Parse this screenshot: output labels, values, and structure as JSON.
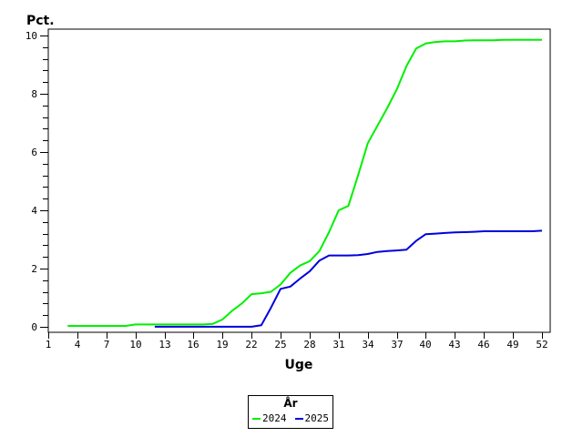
{
  "page": {
    "background": "#ffffff"
  },
  "chart_data": {
    "type": "line",
    "title": "",
    "xlabel": "Uge",
    "ylabel": "Pct.",
    "xlim": [
      1,
      52.85
    ],
    "ylim": [
      -0.19,
      10.22
    ],
    "x_ticks": [
      1,
      4,
      7,
      10,
      13,
      16,
      19,
      22,
      25,
      28,
      31,
      34,
      37,
      40,
      43,
      46,
      49,
      52
    ],
    "y_ticks": [
      0,
      2,
      4,
      6,
      8,
      10
    ],
    "y_minor_tick_step": 0.4,
    "grid": false,
    "frame": true,
    "axis_color": "#000000",
    "legend": {
      "title": "År",
      "position": "bottom-center"
    },
    "series": [
      {
        "name": "2024",
        "color": "#00f000",
        "x": [
          3,
          4,
          5,
          6,
          7,
          8,
          9,
          10,
          11,
          12,
          13,
          14,
          15,
          16,
          17,
          18,
          19,
          20,
          21,
          22,
          23,
          24,
          25,
          26,
          27,
          28,
          29,
          30,
          31,
          32,
          33,
          34,
          35,
          36,
          37,
          38,
          39,
          40,
          41,
          42,
          43,
          44,
          45,
          46,
          47,
          48,
          49,
          50,
          51,
          52
        ],
        "y": [
          0.03,
          0.03,
          0.03,
          0.03,
          0.03,
          0.03,
          0.03,
          0.08,
          0.08,
          0.08,
          0.08,
          0.08,
          0.08,
          0.08,
          0.08,
          0.1,
          0.25,
          0.55,
          0.8,
          1.12,
          1.15,
          1.2,
          1.45,
          1.85,
          2.1,
          2.25,
          2.6,
          3.25,
          4.0,
          4.15,
          5.2,
          6.3,
          6.9,
          7.5,
          8.15,
          8.95,
          9.55,
          9.73,
          9.78,
          9.8,
          9.8,
          9.83,
          9.84,
          9.84,
          9.84,
          9.85,
          9.85,
          9.85,
          9.85,
          9.85
        ]
      },
      {
        "name": "2025",
        "color": "#0000dd",
        "x": [
          12,
          13,
          14,
          15,
          16,
          17,
          18,
          19,
          20,
          21,
          22,
          23,
          24,
          25,
          26,
          27,
          28,
          29,
          30,
          31,
          32,
          33,
          34,
          35,
          36,
          37,
          38,
          39,
          40,
          41,
          42,
          43,
          44,
          45,
          46,
          47,
          48,
          49,
          50,
          51,
          52
        ],
        "y": [
          0.0,
          0.0,
          0.0,
          0.0,
          0.0,
          0.0,
          0.0,
          0.0,
          0.0,
          0.0,
          0.0,
          0.05,
          0.65,
          1.3,
          1.38,
          1.65,
          1.9,
          2.27,
          2.45,
          2.45,
          2.45,
          2.46,
          2.5,
          2.57,
          2.6,
          2.62,
          2.65,
          2.95,
          3.18,
          3.2,
          3.22,
          3.24,
          3.25,
          3.26,
          3.28,
          3.28,
          3.28,
          3.28,
          3.28,
          3.28,
          3.3
        ]
      }
    ]
  }
}
